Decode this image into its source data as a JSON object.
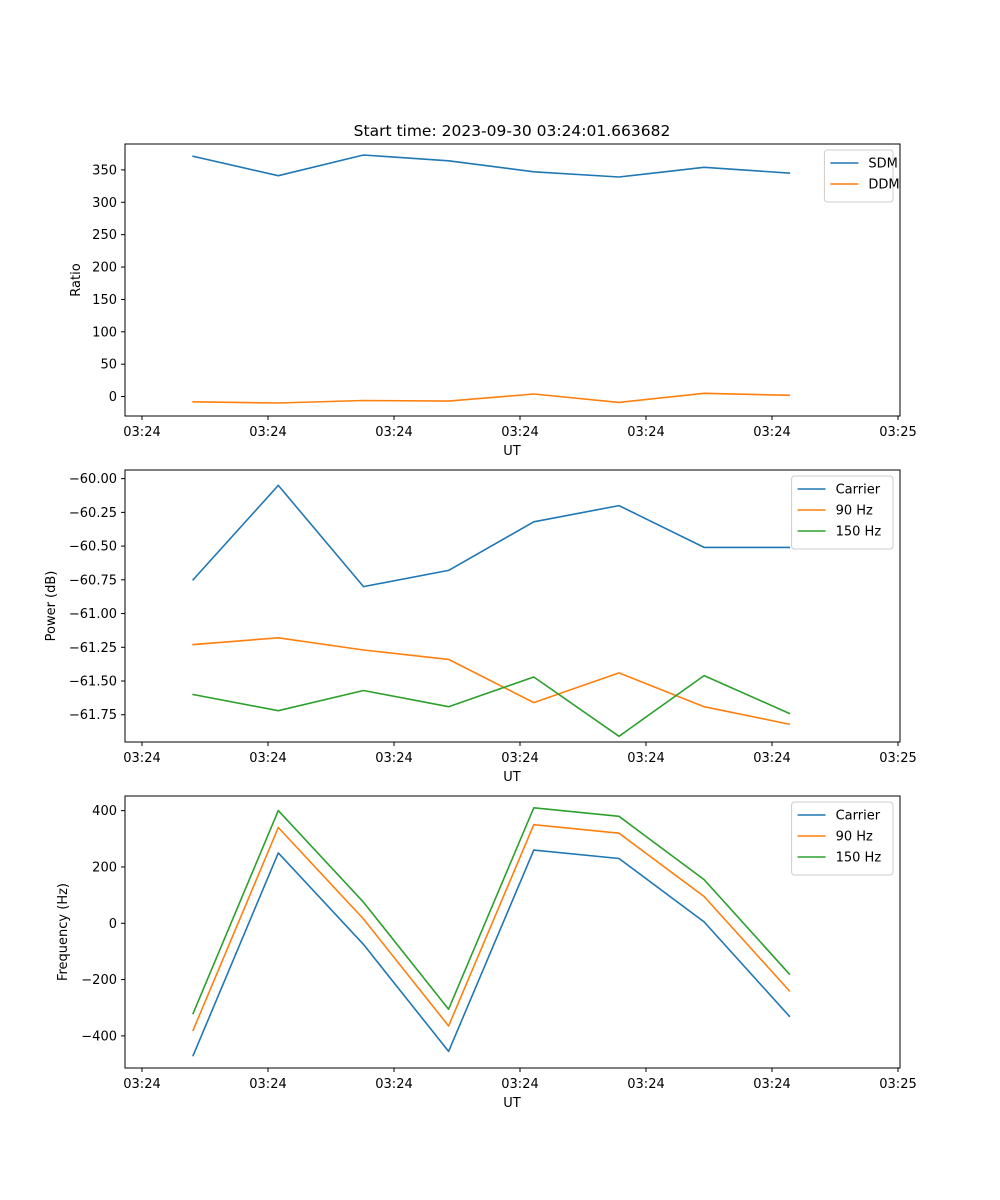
{
  "figure_title": "Start time: 2023-09-30 03:24:01.663682",
  "colors": {
    "series1": "#1f77b4",
    "series2": "#ff7f0e",
    "series3": "#2ca02c"
  },
  "chart_data": [
    {
      "type": "line",
      "title": "Start time: 2023-09-30 03:24:01.663682",
      "xlabel": "UT",
      "ylabel": "Ratio",
      "x_ticks": [
        "03:24",
        "03:24",
        "03:24",
        "03:24",
        "03:24",
        "03:24",
        "03:25"
      ],
      "x": [
        1,
        2,
        3,
        4,
        5,
        6,
        7,
        8
      ],
      "xlim": [
        0.2,
        9.3
      ],
      "ylim": [
        -30,
        390
      ],
      "y_ticks": [
        0,
        50,
        100,
        150,
        200,
        250,
        300,
        350
      ],
      "y_tick_labels": [
        "0",
        "50",
        "100",
        "150",
        "200",
        "250",
        "300",
        "350"
      ],
      "legend_position": "top-right",
      "series": [
        {
          "name": "SDM",
          "color": "#1f77b4",
          "values": [
            371,
            341,
            373,
            364,
            347,
            339,
            354,
            345
          ]
        },
        {
          "name": "DDM",
          "color": "#ff7f0e",
          "values": [
            -8,
            -10,
            -6,
            -7,
            4,
            -9,
            5,
            2
          ]
        }
      ]
    },
    {
      "type": "line",
      "title": "",
      "xlabel": "UT",
      "ylabel": "Power (dB)",
      "x_ticks": [
        "03:24",
        "03:24",
        "03:24",
        "03:24",
        "03:24",
        "03:24",
        "03:25"
      ],
      "x": [
        1,
        2,
        3,
        4,
        5,
        6,
        7,
        8
      ],
      "xlim": [
        0.2,
        9.3
      ],
      "ylim": [
        -61.952,
        -59.936
      ],
      "y_ticks": [
        -61.75,
        -61.5,
        -61.25,
        -61.0,
        -60.75,
        -60.5,
        -60.25,
        -60.0
      ],
      "y_tick_labels": [
        "−61.75",
        "−61.50",
        "−61.25",
        "−61.00",
        "−60.75",
        "−60.50",
        "−60.25",
        "−60.00"
      ],
      "legend_position": "top-right",
      "series": [
        {
          "name": "Carrier",
          "color": "#1f77b4",
          "values": [
            -60.75,
            -60.05,
            -60.8,
            -60.68,
            -60.32,
            -60.2,
            -60.51,
            -60.51
          ]
        },
        {
          "name": "90 Hz",
          "color": "#ff7f0e",
          "values": [
            -61.23,
            -61.18,
            -61.27,
            -61.34,
            -61.66,
            -61.44,
            -61.69,
            -61.82
          ]
        },
        {
          "name": "150 Hz",
          "color": "#2ca02c",
          "values": [
            -61.6,
            -61.72,
            -61.57,
            -61.69,
            -61.47,
            -61.91,
            -61.46,
            -61.74
          ]
        }
      ]
    },
    {
      "type": "line",
      "title": "",
      "xlabel": "UT",
      "ylabel": "Frequency (Hz)",
      "x_ticks": [
        "03:24",
        "03:24",
        "03:24",
        "03:24",
        "03:24",
        "03:24",
        "03:25"
      ],
      "x": [
        1,
        2,
        3,
        4,
        5,
        6,
        7,
        8
      ],
      "xlim": [
        0.2,
        9.3
      ],
      "ylim": [
        -514,
        452
      ],
      "y_ticks": [
        -400,
        -200,
        0,
        200,
        400
      ],
      "y_tick_labels": [
        "−400",
        "−200",
        "0",
        "200",
        "400"
      ],
      "legend_position": "top-right",
      "series": [
        {
          "name": "Carrier",
          "color": "#1f77b4",
          "values": [
            -470,
            250,
            -75,
            -455,
            260,
            230,
            5,
            -330
          ]
        },
        {
          "name": "90 Hz",
          "color": "#ff7f0e",
          "values": [
            -380,
            340,
            15,
            -365,
            350,
            320,
            95,
            -240
          ]
        },
        {
          "name": "150 Hz",
          "color": "#2ca02c",
          "values": [
            -320,
            400,
            75,
            -305,
            410,
            380,
            155,
            -180
          ]
        }
      ]
    }
  ]
}
